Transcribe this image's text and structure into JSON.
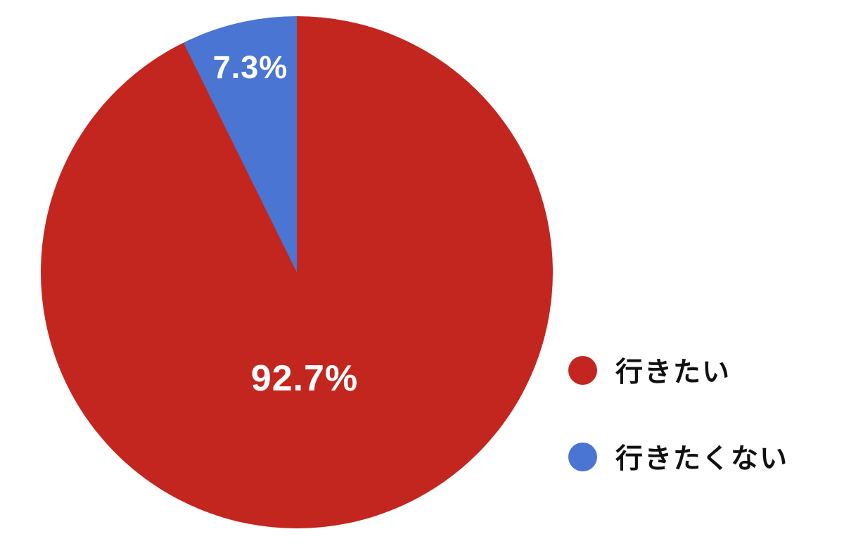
{
  "chart_data": {
    "type": "pie",
    "title": "",
    "legend_position": "right",
    "background": "#ffffff",
    "slice_label_color": "#ffffff",
    "legend_text_color": "#111111",
    "start_angle_deg": 0,
    "slices": [
      {
        "label": "行きたい",
        "value": 92.7,
        "label_text": "92.7%",
        "color": "#c3261f"
      },
      {
        "label": "行きたくない",
        "value": 7.3,
        "label_text": "7.3%",
        "color": "#4a75d2"
      }
    ]
  }
}
